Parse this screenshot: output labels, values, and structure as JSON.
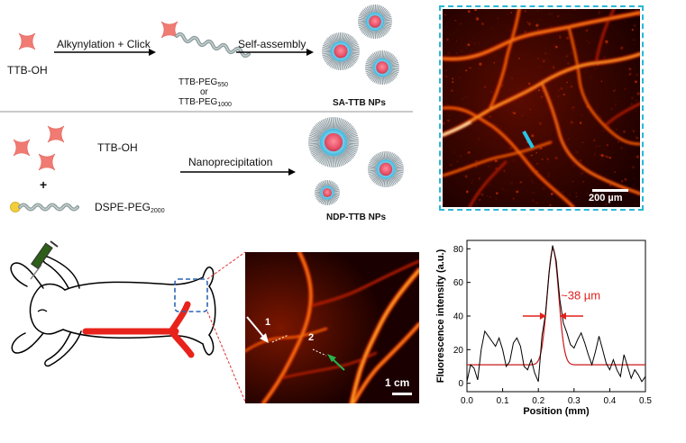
{
  "synthesis": {
    "row1": {
      "reactant": "TTB-OH",
      "step1": "Alkynylation + Click",
      "intermediate_a": "TTB-PEG",
      "intermediate_a_sub": "550",
      "or": "or",
      "intermediate_b": "TTB-PEG",
      "intermediate_b_sub": "1000",
      "step2": "Self-assembly",
      "product": "SA-TTB NPs"
    },
    "row2": {
      "reactant_a": "TTB-OH",
      "plus": "+",
      "reactant_b": "DSPE-PEG",
      "reactant_b_sub": "2000",
      "step": "Nanoprecipitation",
      "product": "NDP-TTB NPs"
    }
  },
  "micrograph": {
    "scale_bar": "200 µm",
    "border_color": "#2bb7d6"
  },
  "rabbit_image": {
    "label_1": "1",
    "label_2": "2",
    "scale_bar": "1 cm"
  },
  "chart_data": {
    "type": "line",
    "xlabel": "Position (mm)",
    "ylabel": "Fluorescence intensity (a.u.)",
    "xlim": [
      0,
      0.5
    ],
    "ylim": [
      -5,
      85
    ],
    "xticks": [
      "0.0",
      "0.1",
      "0.2",
      "0.3",
      "0.4",
      "0.5"
    ],
    "yticks": [
      "0",
      "20",
      "40",
      "60",
      "80"
    ],
    "annotation": "~38 µm",
    "series": [
      {
        "color": "#000000",
        "x": [
          0.0,
          0.01,
          0.02,
          0.03,
          0.04,
          0.05,
          0.06,
          0.07,
          0.08,
          0.09,
          0.1,
          0.11,
          0.12,
          0.13,
          0.14,
          0.15,
          0.16,
          0.17,
          0.18,
          0.19,
          0.2,
          0.21,
          0.22,
          0.23,
          0.24,
          0.25,
          0.26,
          0.27,
          0.28,
          0.29,
          0.3,
          0.31,
          0.32,
          0.33,
          0.34,
          0.35,
          0.36,
          0.37,
          0.38,
          0.39,
          0.4,
          0.41,
          0.42,
          0.43,
          0.44,
          0.45,
          0.46,
          0.47,
          0.48,
          0.49,
          0.5
        ],
        "y": [
          1,
          11,
          9,
          2,
          20,
          31,
          28,
          25,
          22,
          27,
          20,
          10,
          13,
          24,
          27,
          22,
          10,
          8,
          14,
          6,
          1,
          28,
          41,
          66,
          82,
          73,
          50,
          36,
          30,
          23,
          21,
          26,
          30,
          24,
          17,
          11,
          19,
          28,
          20,
          12,
          8,
          14,
          8,
          4,
          17,
          10,
          3,
          8,
          5,
          1,
          4
        ]
      },
      {
        "color": "#cc1a1a",
        "fit": "gaussian",
        "baseline": 11,
        "peak": 80,
        "center": 0.241,
        "sigma": 0.016
      }
    ]
  }
}
